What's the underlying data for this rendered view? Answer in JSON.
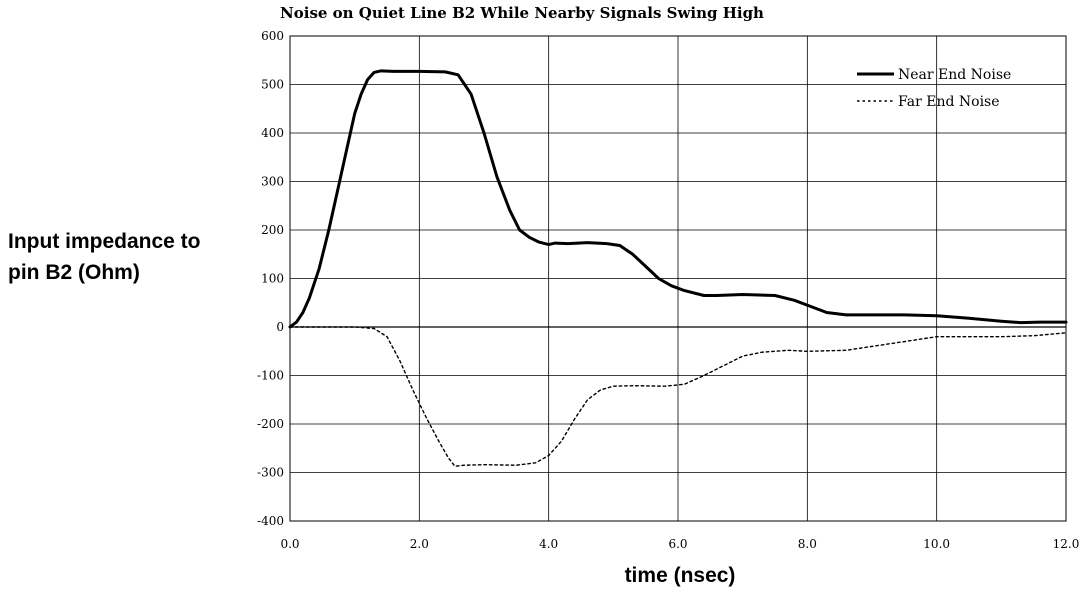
{
  "chart_data": {
    "type": "line",
    "title": "Noise on Quiet Line B2 While Nearby Signals Swing High",
    "xlabel": "time (nsec)",
    "ylabel_lines": [
      "Input impedance to",
      "pin B2 (Ohm)"
    ],
    "xlim": [
      0,
      12
    ],
    "ylim": [
      -400,
      600
    ],
    "x_ticks": [
      0,
      2,
      4,
      6,
      8,
      10,
      12
    ],
    "x_tick_labels": [
      "0.0",
      "2.0",
      "4.0",
      "6.0",
      "8.0",
      "10.0",
      "12.0"
    ],
    "y_ticks": [
      -400,
      -300,
      -200,
      -100,
      0,
      100,
      200,
      300,
      400,
      500,
      600
    ],
    "y_tick_labels": [
      "-400",
      "-300",
      "-200",
      "-100",
      "0",
      "100",
      "200",
      "300",
      "400",
      "500",
      "600"
    ],
    "grid": true,
    "legend_position": "top-right",
    "series": [
      {
        "name": "Near End Noise",
        "style": "solid",
        "color": "#000000",
        "points": [
          [
            0,
            0
          ],
          [
            0.1,
            10
          ],
          [
            0.2,
            30
          ],
          [
            0.3,
            60
          ],
          [
            0.45,
            120
          ],
          [
            0.6,
            200
          ],
          [
            0.75,
            290
          ],
          [
            0.9,
            380
          ],
          [
            1.0,
            440
          ],
          [
            1.1,
            480
          ],
          [
            1.2,
            510
          ],
          [
            1.3,
            525
          ],
          [
            1.4,
            528
          ],
          [
            1.6,
            527
          ],
          [
            2.0,
            527
          ],
          [
            2.4,
            526
          ],
          [
            2.6,
            520
          ],
          [
            2.8,
            480
          ],
          [
            3.0,
            400
          ],
          [
            3.2,
            310
          ],
          [
            3.4,
            240
          ],
          [
            3.55,
            200
          ],
          [
            3.7,
            185
          ],
          [
            3.85,
            175
          ],
          [
            4.0,
            170
          ],
          [
            4.1,
            173
          ],
          [
            4.3,
            172
          ],
          [
            4.6,
            174
          ],
          [
            4.9,
            172
          ],
          [
            5.1,
            168
          ],
          [
            5.3,
            150
          ],
          [
            5.5,
            125
          ],
          [
            5.7,
            100
          ],
          [
            5.9,
            85
          ],
          [
            6.1,
            75
          ],
          [
            6.4,
            65
          ],
          [
            6.6,
            65
          ],
          [
            7.0,
            67
          ],
          [
            7.5,
            65
          ],
          [
            7.8,
            55
          ],
          [
            8.1,
            40
          ],
          [
            8.3,
            30
          ],
          [
            8.6,
            25
          ],
          [
            9.0,
            25
          ],
          [
            9.5,
            25
          ],
          [
            10.0,
            23
          ],
          [
            10.5,
            18
          ],
          [
            11.0,
            12
          ],
          [
            11.3,
            9
          ],
          [
            11.6,
            10
          ],
          [
            12.0,
            10
          ]
        ]
      },
      {
        "name": "Far End Noise",
        "style": "dotted",
        "color": "#000000",
        "points": [
          [
            0,
            0
          ],
          [
            1.0,
            0
          ],
          [
            1.3,
            -3
          ],
          [
            1.5,
            -20
          ],
          [
            1.7,
            -70
          ],
          [
            1.9,
            -130
          ],
          [
            2.1,
            -185
          ],
          [
            2.3,
            -235
          ],
          [
            2.45,
            -270
          ],
          [
            2.55,
            -287
          ],
          [
            2.7,
            -285
          ],
          [
            3.0,
            -284
          ],
          [
            3.5,
            -285
          ],
          [
            3.8,
            -280
          ],
          [
            4.0,
            -265
          ],
          [
            4.2,
            -235
          ],
          [
            4.4,
            -190
          ],
          [
            4.6,
            -150
          ],
          [
            4.8,
            -130
          ],
          [
            5.0,
            -122
          ],
          [
            5.3,
            -121
          ],
          [
            5.8,
            -122
          ],
          [
            6.1,
            -118
          ],
          [
            6.4,
            -100
          ],
          [
            6.7,
            -80
          ],
          [
            7.0,
            -60
          ],
          [
            7.3,
            -52
          ],
          [
            7.7,
            -48
          ],
          [
            8.0,
            -50
          ],
          [
            8.6,
            -48
          ],
          [
            9.0,
            -40
          ],
          [
            9.6,
            -28
          ],
          [
            10.0,
            -20
          ],
          [
            10.5,
            -20
          ],
          [
            11.0,
            -20
          ],
          [
            11.5,
            -18
          ],
          [
            12.0,
            -12
          ]
        ]
      }
    ]
  }
}
